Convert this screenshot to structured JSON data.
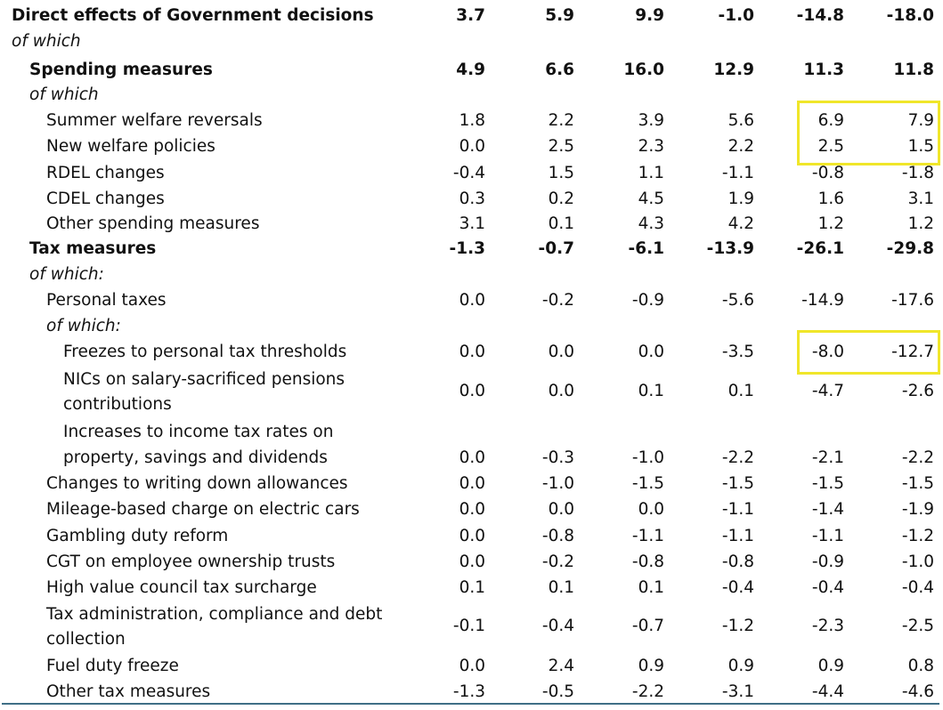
{
  "rows": [
    {
      "label": "Direct effects of Government decisions",
      "values": [
        "3.7",
        "5.9",
        "9.9",
        "-1.0",
        "-14.8",
        "-18.0"
      ]
    },
    {
      "label": "of which"
    },
    {
      "label": "Spending measures",
      "values": [
        "4.9",
        "6.6",
        "16.0",
        "12.9",
        "11.3",
        "11.8"
      ]
    },
    {
      "label": "of which"
    },
    {
      "label": "Summer welfare reversals",
      "values": [
        "1.8",
        "2.2",
        "3.9",
        "5.6",
        "6.9",
        "7.9"
      ]
    },
    {
      "label": "New welfare policies",
      "values": [
        "0.0",
        "2.5",
        "2.3",
        "2.2",
        "2.5",
        "1.5"
      ]
    },
    {
      "label": "RDEL changes",
      "values": [
        "-0.4",
        "1.5",
        "1.1",
        "-1.1",
        "-0.8",
        "-1.8"
      ]
    },
    {
      "label": "CDEL changes",
      "values": [
        "0.3",
        "0.2",
        "4.5",
        "1.9",
        "1.6",
        "3.1"
      ]
    },
    {
      "label": "Other spending measures",
      "values": [
        "3.1",
        "0.1",
        "4.3",
        "4.2",
        "1.2",
        "1.2"
      ]
    },
    {
      "label": "Tax measures",
      "values": [
        "-1.3",
        "-0.7",
        "-6.1",
        "-13.9",
        "-26.1",
        "-29.8"
      ]
    },
    {
      "label": "of which:"
    },
    {
      "label": "Personal taxes",
      "values": [
        "0.0",
        "-0.2",
        "-0.9",
        "-5.6",
        "-14.9",
        "-17.6"
      ]
    },
    {
      "label": "of which:"
    },
    {
      "label": "Freezes to personal tax thresholds",
      "values": [
        "0.0",
        "0.0",
        "0.0",
        "-3.5",
        "-8.0",
        "-12.7"
      ]
    },
    {
      "label": "NICs on salary-sacrificed pensions",
      "label2": "contributions",
      "values": [
        "0.0",
        "0.0",
        "0.1",
        "0.1",
        "-4.7",
        "-2.6"
      ]
    },
    {
      "label": "Increases to income tax rates on",
      "label2": "property, savings and dividends",
      "values": [
        "0.0",
        "-0.3",
        "-1.0",
        "-2.2",
        "-2.1",
        "-2.2"
      ]
    },
    {
      "label": "Changes to writing down allowances",
      "values": [
        "0.0",
        "-1.0",
        "-1.5",
        "-1.5",
        "-1.5",
        "-1.5"
      ]
    },
    {
      "label": "Mileage-based charge on electric cars",
      "values": [
        "0.0",
        "0.0",
        "0.0",
        "-1.1",
        "-1.4",
        "-1.9"
      ]
    },
    {
      "label": "Gambling duty reform",
      "values": [
        "0.0",
        "-0.8",
        "-1.1",
        "-1.1",
        "-1.1",
        "-1.2"
      ]
    },
    {
      "label": "CGT on employee ownership trusts",
      "values": [
        "0.0",
        "-0.2",
        "-0.8",
        "-0.8",
        "-0.9",
        "-1.0"
      ]
    },
    {
      "label": "High value council tax surcharge",
      "values": [
        "0.1",
        "0.1",
        "0.1",
        "-0.4",
        "-0.4",
        "-0.4"
      ]
    },
    {
      "label": "Tax administration, compliance and debt",
      "label2": "collection",
      "values": [
        "-0.1",
        "-0.4",
        "-0.7",
        "-1.2",
        "-2.3",
        "-2.5"
      ]
    },
    {
      "label": "Fuel duty freeze",
      "values": [
        "0.0",
        "2.4",
        "0.9",
        "0.9",
        "0.9",
        "0.8"
      ]
    },
    {
      "label": "Other tax measures",
      "values": [
        "-1.3",
        "-0.5",
        "-2.2",
        "-3.1",
        "-4.4",
        "-4.6"
      ]
    }
  ],
  "highlight_color": "#f0e62a",
  "rule_color": "#3f6f86"
}
